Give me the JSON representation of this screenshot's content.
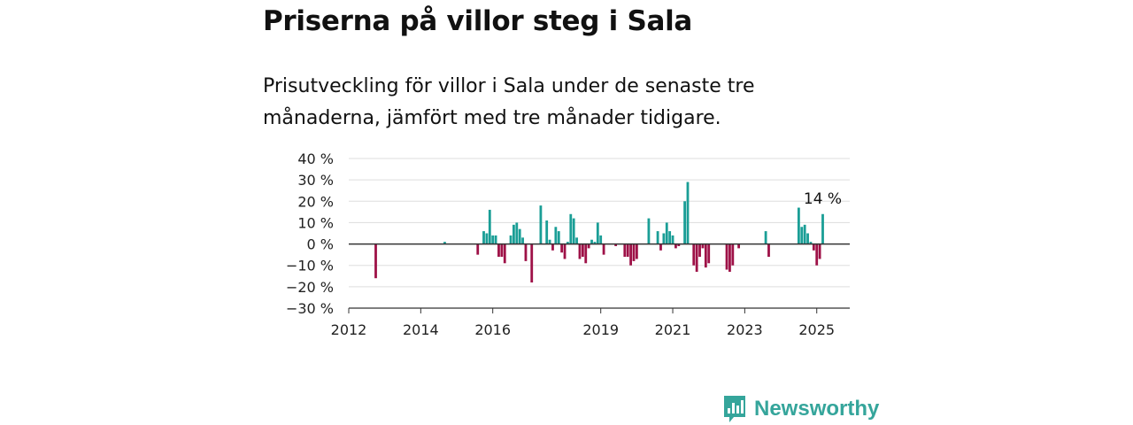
{
  "title": "Priserna på villor steg i Sala",
  "subtitle": "Prisutveckling för villor i Sala under de senaste tre månaderna, jämfört med tre månader tidigare.",
  "brand": {
    "name": "Newsworthy",
    "icon": "newsworthy-logo-icon",
    "color": "#35a59b"
  },
  "chart_data": {
    "type": "bar",
    "title": "",
    "xlabel": "",
    "ylabel": "",
    "ylim": [
      -30,
      40
    ],
    "xlim": [
      "2012-01",
      "2025-12"
    ],
    "grid": true,
    "legend": "none",
    "colors": {
      "positive": "#1a9e96",
      "negative": "#9e1147",
      "grid": "#dddddd",
      "zero": "#333333"
    },
    "y_ticks": [
      {
        "value": 40,
        "label": "40 %"
      },
      {
        "value": 30,
        "label": "30 %"
      },
      {
        "value": 20,
        "label": "20 %"
      },
      {
        "value": 10,
        "label": "10 %"
      },
      {
        "value": 0,
        "label": "0 %"
      },
      {
        "value": -10,
        "label": "−10 %"
      },
      {
        "value": -20,
        "label": "−20 %"
      },
      {
        "value": -30,
        "label": "−30 %"
      }
    ],
    "x_ticks": [
      {
        "date": "2012-01",
        "label": "2012"
      },
      {
        "date": "2014-01",
        "label": "2014"
      },
      {
        "date": "2016-01",
        "label": "2016"
      },
      {
        "date": "2019-01",
        "label": "2019"
      },
      {
        "date": "2021-01",
        "label": "2021"
      },
      {
        "date": "2023-01",
        "label": "2023"
      },
      {
        "date": "2025-01",
        "label": "2025"
      }
    ],
    "annotation": {
      "date": "2025-03",
      "value": 14,
      "label": "14 %"
    },
    "series": [
      {
        "values": [
          {
            "x": "2012-10",
            "y": -16
          },
          {
            "x": "2014-09",
            "y": 1
          },
          {
            "x": "2015-08",
            "y": -5
          },
          {
            "x": "2015-10",
            "y": 6
          },
          {
            "x": "2015-11",
            "y": 5
          },
          {
            "x": "2015-12",
            "y": 16
          },
          {
            "x": "2016-01",
            "y": 4
          },
          {
            "x": "2016-02",
            "y": 4
          },
          {
            "x": "2016-03",
            "y": -6
          },
          {
            "x": "2016-04",
            "y": -6
          },
          {
            "x": "2016-05",
            "y": -9
          },
          {
            "x": "2016-07",
            "y": 4
          },
          {
            "x": "2016-08",
            "y": 9
          },
          {
            "x": "2016-09",
            "y": 10
          },
          {
            "x": "2016-10",
            "y": 7
          },
          {
            "x": "2016-11",
            "y": 3
          },
          {
            "x": "2016-12",
            "y": -8
          },
          {
            "x": "2017-02",
            "y": -18
          },
          {
            "x": "2017-05",
            "y": 18
          },
          {
            "x": "2017-07",
            "y": 11
          },
          {
            "x": "2017-08",
            "y": 2
          },
          {
            "x": "2017-09",
            "y": -3
          },
          {
            "x": "2017-10",
            "y": 8
          },
          {
            "x": "2017-11",
            "y": 6
          },
          {
            "x": "2017-12",
            "y": -4
          },
          {
            "x": "2018-01",
            "y": -7
          },
          {
            "x": "2018-02",
            "y": 1
          },
          {
            "x": "2018-03",
            "y": 14
          },
          {
            "x": "2018-04",
            "y": 12
          },
          {
            "x": "2018-05",
            "y": 3
          },
          {
            "x": "2018-06",
            "y": -7
          },
          {
            "x": "2018-07",
            "y": -6
          },
          {
            "x": "2018-08",
            "y": -9
          },
          {
            "x": "2018-09",
            "y": -2
          },
          {
            "x": "2018-10",
            "y": 2
          },
          {
            "x": "2018-11",
            "y": 1
          },
          {
            "x": "2018-12",
            "y": 10
          },
          {
            "x": "2019-01",
            "y": 4
          },
          {
            "x": "2019-02",
            "y": -5
          },
          {
            "x": "2019-06",
            "y": -1
          },
          {
            "x": "2019-09",
            "y": -6
          },
          {
            "x": "2019-10",
            "y": -6
          },
          {
            "x": "2019-11",
            "y": -10
          },
          {
            "x": "2019-12",
            "y": -8
          },
          {
            "x": "2020-01",
            "y": -7
          },
          {
            "x": "2020-05",
            "y": 12
          },
          {
            "x": "2020-08",
            "y": 6
          },
          {
            "x": "2020-09",
            "y": -3
          },
          {
            "x": "2020-10",
            "y": 5
          },
          {
            "x": "2020-11",
            "y": 10
          },
          {
            "x": "2020-12",
            "y": 6
          },
          {
            "x": "2021-01",
            "y": 4
          },
          {
            "x": "2021-02",
            "y": -2
          },
          {
            "x": "2021-03",
            "y": -1
          },
          {
            "x": "2021-05",
            "y": 20
          },
          {
            "x": "2021-06",
            "y": 29
          },
          {
            "x": "2021-08",
            "y": -10
          },
          {
            "x": "2021-09",
            "y": -13
          },
          {
            "x": "2021-10",
            "y": -6
          },
          {
            "x": "2021-11",
            "y": -2
          },
          {
            "x": "2021-12",
            "y": -11
          },
          {
            "x": "2022-01",
            "y": -9
          },
          {
            "x": "2022-07",
            "y": -12
          },
          {
            "x": "2022-08",
            "y": -13
          },
          {
            "x": "2022-09",
            "y": -10
          },
          {
            "x": "2022-11",
            "y": -2
          },
          {
            "x": "2023-08",
            "y": 6
          },
          {
            "x": "2023-09",
            "y": -6
          },
          {
            "x": "2024-07",
            "y": 17
          },
          {
            "x": "2024-08",
            "y": 8
          },
          {
            "x": "2024-09",
            "y": 9
          },
          {
            "x": "2024-10",
            "y": 5
          },
          {
            "x": "2024-11",
            "y": 1
          },
          {
            "x": "2024-12",
            "y": -3
          },
          {
            "x": "2025-01",
            "y": -10
          },
          {
            "x": "2025-02",
            "y": -7
          },
          {
            "x": "2025-03",
            "y": 14
          }
        ]
      }
    ]
  }
}
